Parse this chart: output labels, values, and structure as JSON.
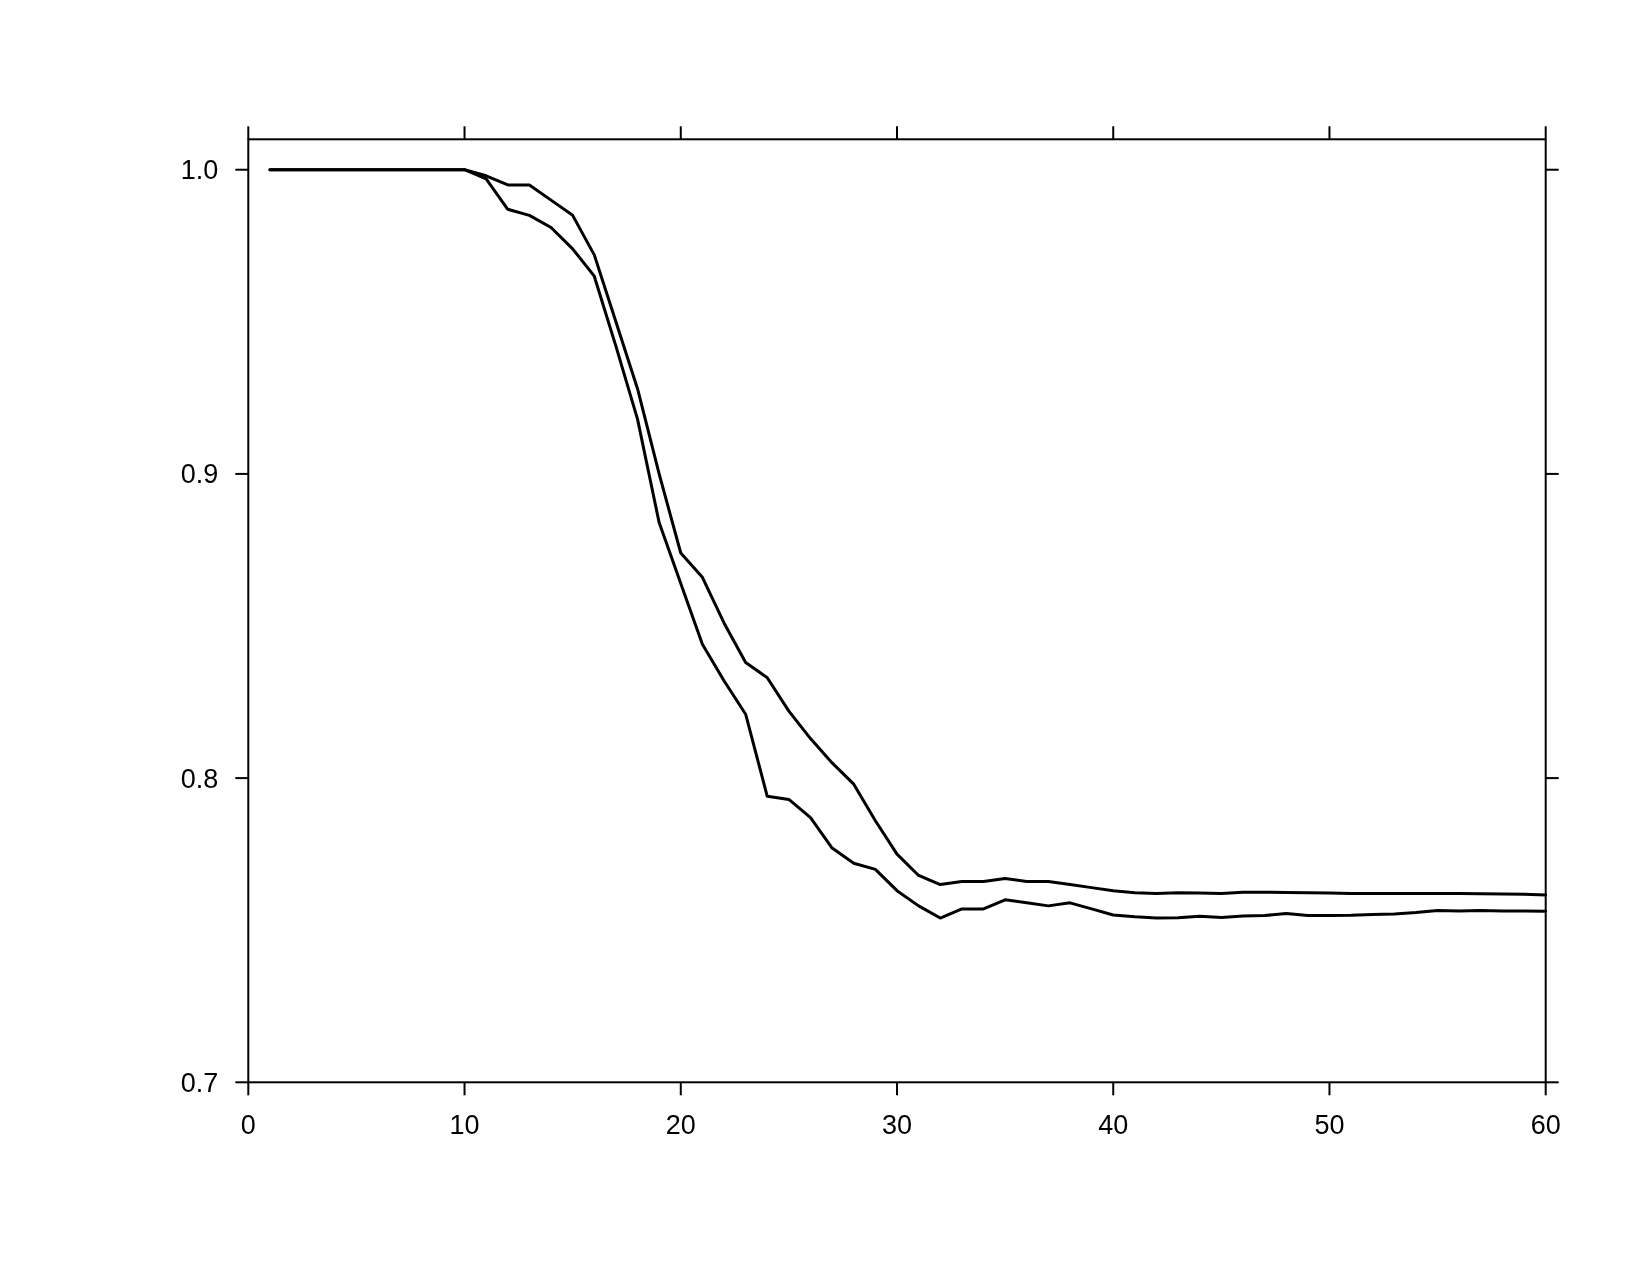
{
  "chart_data": {
    "type": "line",
    "x": [
      1,
      2,
      3,
      4,
      5,
      6,
      7,
      8,
      9,
      10,
      11,
      12,
      13,
      14,
      15,
      16,
      17,
      18,
      19,
      20,
      21,
      22,
      23,
      24,
      25,
      26,
      27,
      28,
      29,
      30,
      31,
      32,
      33,
      34,
      35,
      36,
      37,
      38,
      39,
      40,
      41,
      42,
      43,
      44,
      45,
      46,
      47,
      48,
      49,
      50,
      51,
      52,
      53,
      54,
      55,
      56,
      57,
      58,
      59,
      60
    ],
    "series": [
      {
        "color": "#000000",
        "values": [
          1.0,
          1.0,
          1.0,
          1.0,
          1.0,
          1.0,
          1.0,
          1.0,
          1.0,
          1.0,
          0.998,
          0.995,
          0.995,
          0.99,
          0.985,
          0.972,
          0.95,
          0.928,
          0.9,
          0.874,
          0.866,
          0.851,
          0.838,
          0.833,
          0.822,
          0.813,
          0.805,
          0.798,
          0.786,
          0.775,
          0.768,
          0.765,
          0.766,
          0.766,
          0.767,
          0.766,
          0.766,
          0.765,
          0.764,
          0.763,
          0.7623,
          0.7621,
          0.7623,
          0.7622,
          0.7621,
          0.7625,
          0.7625,
          0.7624,
          0.7623,
          0.7622,
          0.7621,
          0.7621,
          0.7621,
          0.7621,
          0.7621,
          0.7621,
          0.762,
          0.7619,
          0.7618,
          0.7616
        ]
      },
      {
        "color": "#000000",
        "values": [
          1.0,
          1.0,
          1.0,
          1.0,
          1.0,
          1.0,
          1.0,
          1.0,
          1.0,
          1.0,
          0.997,
          0.987,
          0.985,
          0.981,
          0.974,
          0.965,
          0.942,
          0.918,
          0.884,
          0.864,
          0.844,
          0.832,
          0.821,
          0.794,
          0.793,
          0.787,
          0.777,
          0.772,
          0.77,
          0.763,
          0.758,
          0.754,
          0.757,
          0.757,
          0.76,
          0.759,
          0.758,
          0.759,
          0.757,
          0.755,
          0.7544,
          0.754,
          0.7541,
          0.7546,
          0.7542,
          0.7547,
          0.7548,
          0.7555,
          0.7548,
          0.7548,
          0.7549,
          0.7552,
          0.7553,
          0.7558,
          0.7565,
          0.7563,
          0.7565,
          0.7563,
          0.7563,
          0.7562
        ]
      }
    ],
    "xlim": [
      0,
      60
    ],
    "xticks": [
      0,
      10,
      20,
      30,
      40,
      50,
      60
    ],
    "ylim": [
      0.7,
      1.01
    ],
    "yticks": [
      0.7,
      0.8,
      0.9,
      {
        "value": 1.0,
        "label": "1.0"
      }
    ]
  }
}
